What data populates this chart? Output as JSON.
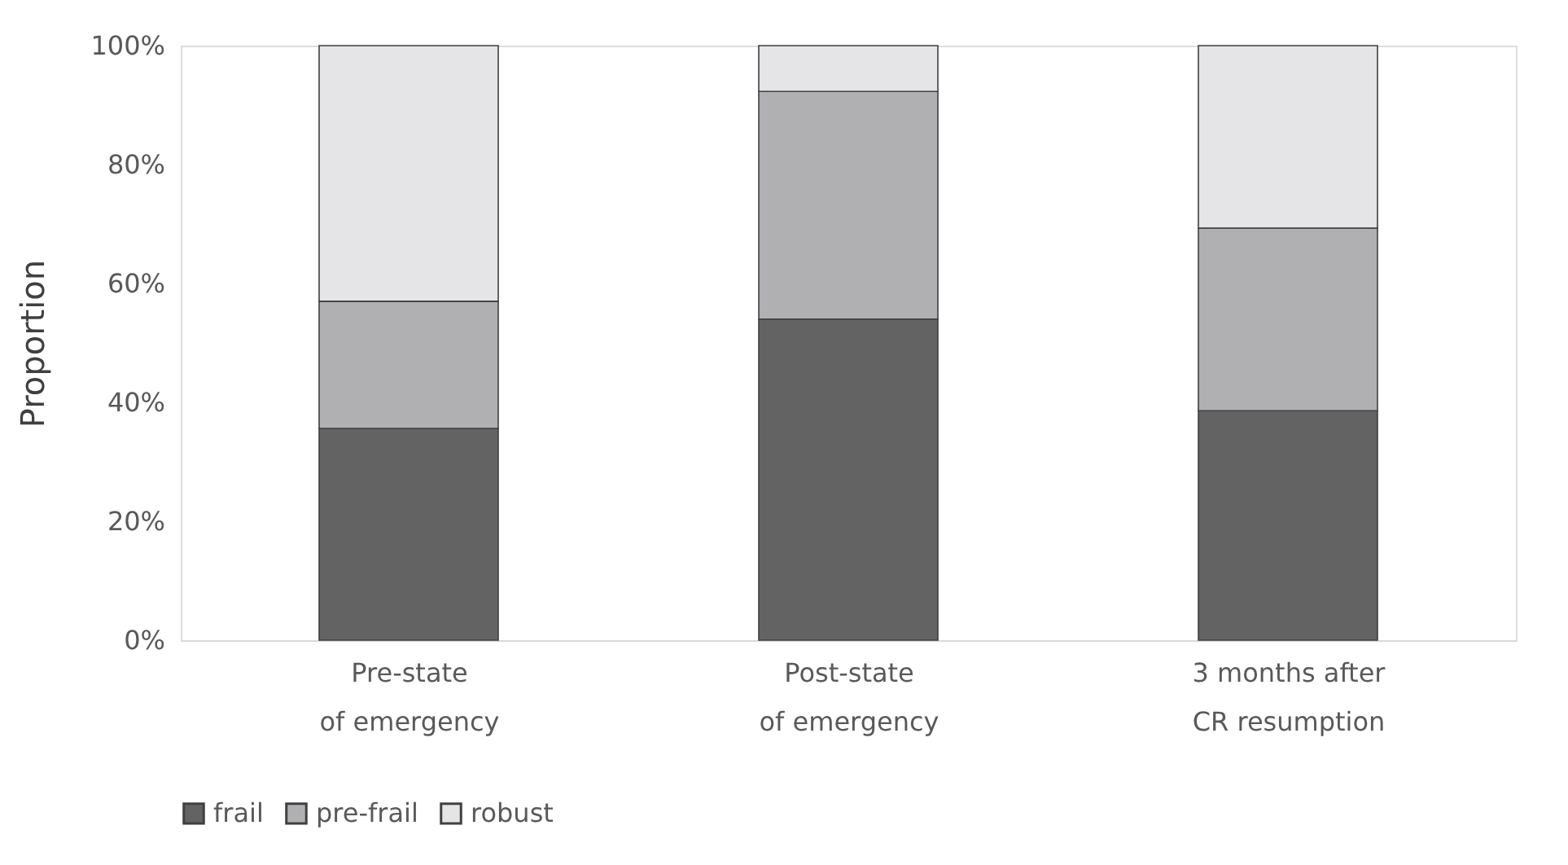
{
  "chart_data": {
    "type": "bar",
    "stacked": true,
    "ylabel": "Proportion",
    "categories": [
      "Pre-state\nof emergency",
      "Post-state\nof emergency",
      "3 months after\nCR resumption"
    ],
    "series": [
      {
        "name": "frail",
        "color": "#636363",
        "values": [
          35.6,
          54.0,
          38.6
        ]
      },
      {
        "name": "pre-frail",
        "color": "#b0b0b3",
        "values": [
          21.4,
          38.3,
          30.7
        ]
      },
      {
        "name": "robust",
        "color": "#e5e5e7",
        "values": [
          43.0,
          7.7,
          30.7
        ]
      }
    ],
    "ylim": [
      0,
      100
    ],
    "yticks": [
      {
        "value": 0,
        "label": "0%"
      },
      {
        "value": 20,
        "label": "20%"
      },
      {
        "value": 40,
        "label": "40%"
      },
      {
        "value": 60,
        "label": "60%"
      },
      {
        "value": 80,
        "label": "80%"
      },
      {
        "value": 100,
        "label": "100%"
      }
    ],
    "grid": false,
    "legend": "bottom"
  }
}
